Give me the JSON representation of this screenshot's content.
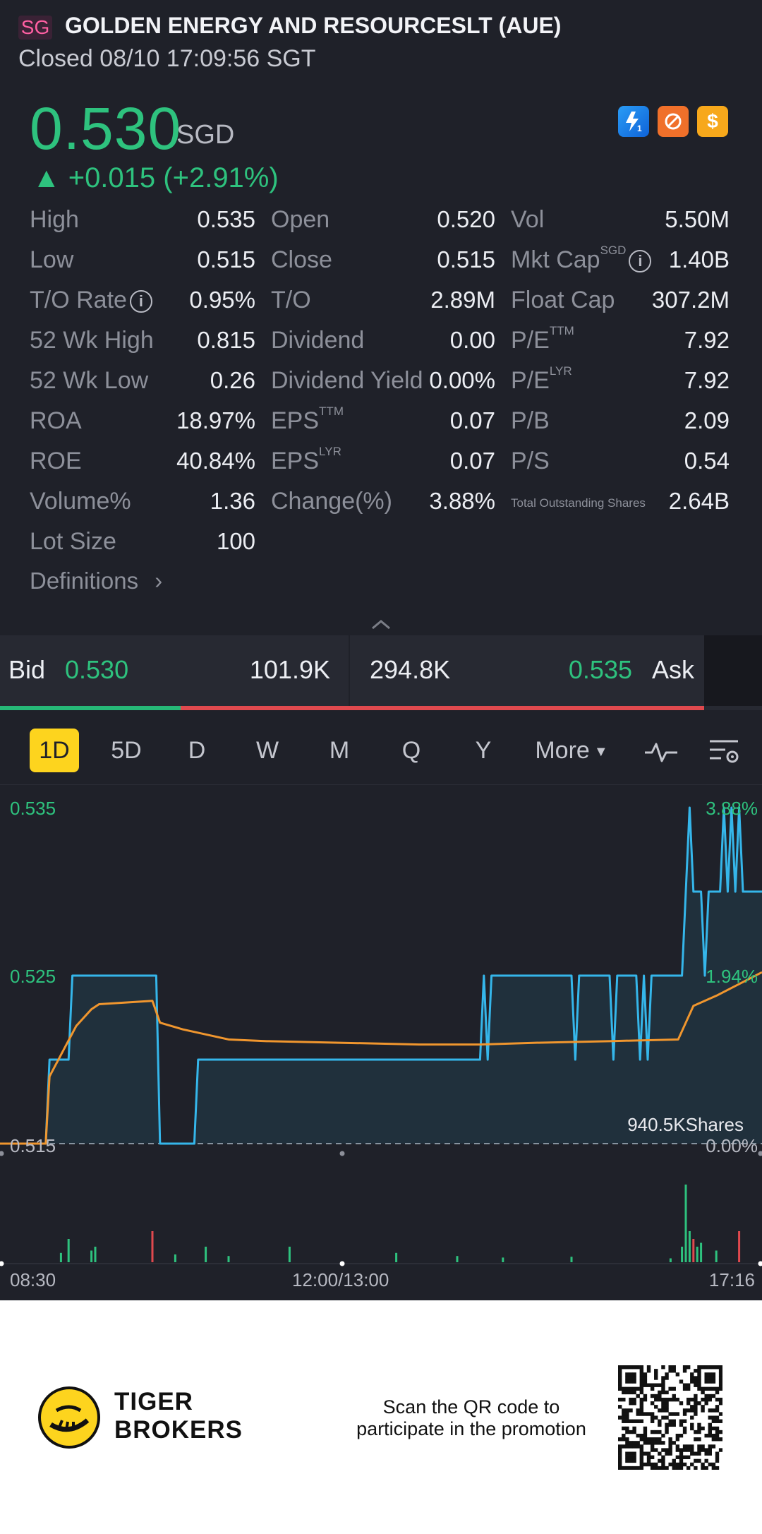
{
  "header": {
    "market_badge": "SG",
    "stock_name": "GOLDEN ENERGY AND RESOURCESLT (AUE)",
    "status": "Closed 08/10 17:09:56 SGT"
  },
  "quote": {
    "price": "0.530",
    "currency": "SGD",
    "change": "▲ +0.015 (+2.91%)",
    "price_color": "#2ec27e"
  },
  "feature_icons": [
    "lightning-level1-icon",
    "refresh-orange-icon",
    "dollar-icon"
  ],
  "stats": {
    "col1": [
      {
        "label": "High",
        "value": "0.535"
      },
      {
        "label": "Low",
        "value": "0.515"
      },
      {
        "label": "T/O Rate",
        "value": "0.95%"
      },
      {
        "label": "52 Wk High",
        "value": "0.815"
      },
      {
        "label": "52 Wk Low",
        "value": "0.26"
      },
      {
        "label": "ROA",
        "value": "18.97%"
      },
      {
        "label": "ROE",
        "value": "40.84%"
      },
      {
        "label": "Volume%",
        "value": "1.36"
      },
      {
        "label": "Lot Size",
        "value": "100"
      }
    ],
    "col2": [
      {
        "label": "Open",
        "value": "0.520"
      },
      {
        "label": "Close",
        "value": "0.515"
      },
      {
        "label": "T/O",
        "value": "2.89M"
      },
      {
        "label": "Dividend",
        "value": "0.00"
      },
      {
        "label": "Dividend Yield",
        "value": "0.00%"
      },
      {
        "label": "EPS",
        "sup": "TTM",
        "value": "0.07"
      },
      {
        "label": "EPS",
        "sup": "LYR",
        "value": "0.07"
      },
      {
        "label": "Change(%)",
        "value": "3.88%"
      }
    ],
    "col3": [
      {
        "label": "Vol",
        "value": "5.50M"
      },
      {
        "label": "Mkt Cap",
        "sup": "SGD",
        "value": "1.40B"
      },
      {
        "label": "Float Cap",
        "value": "307.2M"
      },
      {
        "label": "P/E",
        "sup": "TTM",
        "value": "7.92"
      },
      {
        "label": "P/E",
        "sup": "LYR",
        "value": "7.92"
      },
      {
        "label": "P/B",
        "value": "2.09"
      },
      {
        "label": "P/S",
        "value": "0.54"
      },
      {
        "label": "Total Outstanding Shares",
        "value": "2.64B"
      }
    ],
    "definitions": "Definitions",
    "definitions_arrow": "›"
  },
  "bidask": {
    "bid_label": "Bid",
    "bid_price": "0.530",
    "bid_size": "101.9K",
    "ask_size": "294.8K",
    "ask_price": "0.535",
    "ask_label": "Ask",
    "bid_ratio": 0.257
  },
  "tabs": {
    "items": [
      "1D",
      "5D",
      "D",
      "W",
      "M",
      "Q",
      "Y",
      "More"
    ],
    "active": "1D"
  },
  "chart_data": {
    "type": "line",
    "y_left_ticks": [
      "0.535",
      "0.525",
      "0.515"
    ],
    "y_right_ticks": [
      "3.88%",
      "1.94%",
      "0.00%"
    ],
    "x_ticks": [
      "08:30",
      "12:00/13:00",
      "17:16"
    ],
    "ylim": [
      0.515,
      0.535
    ],
    "volume_label": "940.5KShares",
    "series": [
      {
        "color": "#35b6ea",
        "points": [
          [
            0,
            0.515
          ],
          [
            0.06,
            0.515
          ],
          [
            0.065,
            0.52
          ],
          [
            0.09,
            0.52
          ],
          [
            0.095,
            0.525
          ],
          [
            0.205,
            0.525
          ],
          [
            0.21,
            0.515
          ],
          [
            0.255,
            0.515
          ],
          [
            0.26,
            0.52
          ],
          [
            0.63,
            0.52
          ],
          [
            0.635,
            0.525
          ],
          [
            0.64,
            0.52
          ],
          [
            0.645,
            0.525
          ],
          [
            0.75,
            0.525
          ],
          [
            0.755,
            0.52
          ],
          [
            0.76,
            0.525
          ],
          [
            0.8,
            0.525
          ],
          [
            0.805,
            0.52
          ],
          [
            0.81,
            0.525
          ],
          [
            0.835,
            0.525
          ],
          [
            0.84,
            0.52
          ],
          [
            0.845,
            0.525
          ],
          [
            0.85,
            0.52
          ],
          [
            0.855,
            0.525
          ],
          [
            0.895,
            0.525
          ],
          [
            0.9,
            0.53
          ],
          [
            0.905,
            0.535
          ],
          [
            0.91,
            0.53
          ],
          [
            0.92,
            0.53
          ],
          [
            0.925,
            0.525
          ],
          [
            0.93,
            0.53
          ],
          [
            0.945,
            0.53
          ],
          [
            0.95,
            0.535
          ],
          [
            0.955,
            0.53
          ],
          [
            0.96,
            0.535
          ],
          [
            0.965,
            0.53
          ],
          [
            0.97,
            0.535
          ],
          [
            0.975,
            0.53
          ],
          [
            1,
            0.53
          ]
        ]
      },
      {
        "color": "#f0962e",
        "points": [
          [
            0,
            0.515
          ],
          [
            0.06,
            0.515
          ],
          [
            0.065,
            0.519
          ],
          [
            0.1,
            0.522
          ],
          [
            0.12,
            0.523
          ],
          [
            0.13,
            0.5233
          ],
          [
            0.2,
            0.5235
          ],
          [
            0.21,
            0.5222
          ],
          [
            0.24,
            0.5218
          ],
          [
            0.27,
            0.5215
          ],
          [
            0.3,
            0.5212
          ],
          [
            0.35,
            0.5211
          ],
          [
            0.45,
            0.521
          ],
          [
            0.55,
            0.5209
          ],
          [
            0.63,
            0.5209
          ],
          [
            0.7,
            0.521
          ],
          [
            0.8,
            0.5211
          ],
          [
            0.89,
            0.5212
          ],
          [
            0.91,
            0.5232
          ],
          [
            0.94,
            0.5238
          ],
          [
            0.97,
            0.5245
          ],
          [
            1,
            0.5252
          ]
        ]
      }
    ],
    "volume": [
      [
        0.08,
        0.12,
        "g"
      ],
      [
        0.09,
        0.3,
        "g"
      ],
      [
        0.12,
        0.15,
        "g"
      ],
      [
        0.125,
        0.2,
        "g"
      ],
      [
        0.2,
        0.4,
        "r"
      ],
      [
        0.23,
        0.1,
        "g"
      ],
      [
        0.27,
        0.2,
        "g"
      ],
      [
        0.3,
        0.08,
        "g"
      ],
      [
        0.38,
        0.2,
        "g"
      ],
      [
        0.52,
        0.12,
        "g"
      ],
      [
        0.6,
        0.08,
        "g"
      ],
      [
        0.66,
        0.06,
        "g"
      ],
      [
        0.75,
        0.07,
        "g"
      ],
      [
        0.88,
        0.05,
        "g"
      ],
      [
        0.895,
        0.2,
        "g"
      ],
      [
        0.9,
        1.0,
        "g"
      ],
      [
        0.905,
        0.4,
        "g"
      ],
      [
        0.91,
        0.3,
        "r"
      ],
      [
        0.915,
        0.2,
        "g"
      ],
      [
        0.92,
        0.25,
        "g"
      ],
      [
        0.94,
        0.15,
        "g"
      ],
      [
        0.97,
        0.4,
        "r"
      ]
    ]
  },
  "footer": {
    "brand_line1": "TIGER",
    "brand_line2": "BROKERS",
    "promo_line1": "Scan the QR code to",
    "promo_line2": "participate in the promotion"
  },
  "colors": {
    "background": "#1f2129",
    "up_green": "#2ec27e",
    "down_red": "#e0494e",
    "accent_yellow": "#fdd41e",
    "line_blue": "#35b6ea",
    "line_orange": "#f0962e"
  }
}
